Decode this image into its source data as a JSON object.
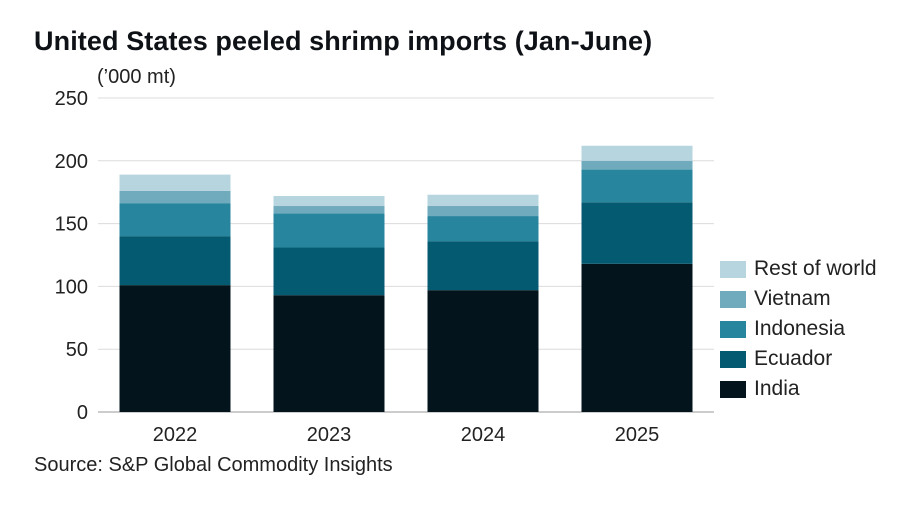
{
  "title": "United States peeled shrimp imports (Jan-June)",
  "unit_label": "(’000 mt)",
  "source": "Source: S&P Global Commodity Insights",
  "chart_data": {
    "type": "bar",
    "stacked": true,
    "categories": [
      "2022",
      "2023",
      "2024",
      "2025"
    ],
    "ylim": [
      0,
      250
    ],
    "yticks": [
      "0",
      "50",
      "100",
      "150",
      "200",
      "250"
    ],
    "grid": true,
    "legend_position": "right",
    "series": [
      {
        "name": "India",
        "color": "#03141c",
        "values": [
          101,
          93,
          97,
          118
        ]
      },
      {
        "name": "Ecuador",
        "color": "#045a70",
        "values": [
          39,
          38,
          39,
          49
        ]
      },
      {
        "name": "Indonesia",
        "color": "#27859d",
        "values": [
          26,
          27,
          20,
          26
        ]
      },
      {
        "name": "Vietnam",
        "color": "#6fabbd",
        "values": [
          10,
          6,
          8,
          7
        ]
      },
      {
        "name": "Rest of world",
        "color": "#b6d5df",
        "values": [
          13,
          8,
          9,
          12
        ]
      }
    ]
  }
}
